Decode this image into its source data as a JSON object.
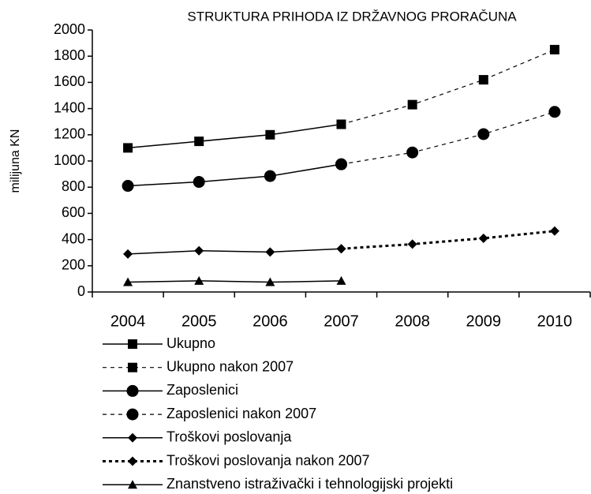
{
  "chart_data": {
    "type": "line",
    "title": "STRUKTURA  PRIHODA IZ DRŽAVNOG PRORAČUNA",
    "y_label": "milijuna KN",
    "categories": [
      "2004",
      "2005",
      "2006",
      "2007",
      "2008",
      "2009",
      "2010"
    ],
    "ylim": [
      0,
      2000
    ],
    "yticks": [
      0,
      200,
      400,
      600,
      800,
      1000,
      1200,
      1400,
      1600,
      1800,
      2000
    ],
    "series": [
      {
        "name": "Ukupno",
        "color": "#000000",
        "marker": "square",
        "line_style": "solid",
        "values": [
          1100,
          1150,
          1200,
          1280,
          null,
          null,
          null
        ]
      },
      {
        "name": "Ukupno nakon 2007",
        "color": "#000000",
        "marker": "square",
        "line_style": "dashed",
        "values": [
          null,
          null,
          null,
          1280,
          1430,
          1620,
          1850
        ]
      },
      {
        "name": "Zaposlenici",
        "color": "#000000",
        "marker": "circle",
        "line_style": "solid",
        "values": [
          810,
          840,
          885,
          975,
          null,
          null,
          null
        ]
      },
      {
        "name": "Zaposlenici nakon 2007",
        "color": "#000000",
        "marker": "circle",
        "line_style": "dashed",
        "values": [
          null,
          null,
          null,
          975,
          1065,
          1205,
          1375
        ]
      },
      {
        "name": "Troškovi poslovanja",
        "color": "#000000",
        "marker": "diamond",
        "line_style": "solid",
        "values": [
          290,
          315,
          305,
          330,
          null,
          null,
          null
        ]
      },
      {
        "name": "Troškovi poslovanja nakon 2007",
        "color": "#000000",
        "marker": "diamond",
        "line_style": "dotted",
        "values": [
          null,
          null,
          null,
          330,
          365,
          410,
          465
        ]
      },
      {
        "name": "Znanstveno istraživački i tehnologijski projekti",
        "color": "#000000",
        "marker": "triangle",
        "line_style": "solid",
        "values": [
          75,
          85,
          75,
          85,
          null,
          null,
          null
        ]
      }
    ]
  }
}
